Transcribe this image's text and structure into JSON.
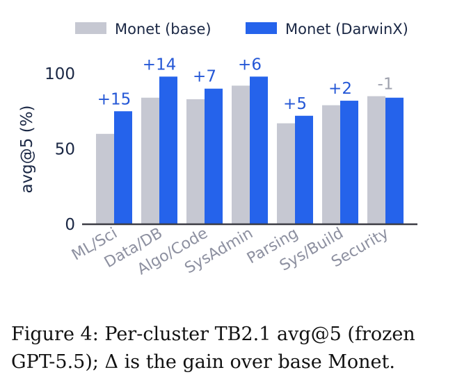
{
  "chart_data": {
    "type": "bar",
    "categories": [
      "ML/Sci",
      "Data/DB",
      "Algo/Code",
      "SysAdmin",
      "Parsing",
      "Sys/Build",
      "Security"
    ],
    "series": [
      {
        "name": "Monet (base)",
        "values": [
          60,
          84,
          83,
          92,
          67,
          79,
          85
        ],
        "color": "#c6c8d2"
      },
      {
        "name": "Monet (DarwinX)",
        "values": [
          75,
          98,
          90,
          98,
          72,
          82,
          84
        ],
        "color": "#2563eb"
      }
    ],
    "delta_labels": [
      "+15",
      "+14",
      "+7",
      "+6",
      "+5",
      "+2",
      "-1"
    ],
    "delta_colors": [
      "#2457d6",
      "#2457d6",
      "#2457d6",
      "#2457d6",
      "#2457d6",
      "#2457d6",
      "#9ea1ad"
    ],
    "ylabel": "avg@5 (%)",
    "yticks": [
      0,
      50,
      100
    ],
    "ylim": [
      0,
      100
    ],
    "grid": false,
    "legend_position": "top-center",
    "tick_label_color": "#8d90a0"
  },
  "caption": "Figure 4: Per-cluster TB2.1 avg@5 (frozen GPT-5.5); Δ is the gain over base Monet."
}
